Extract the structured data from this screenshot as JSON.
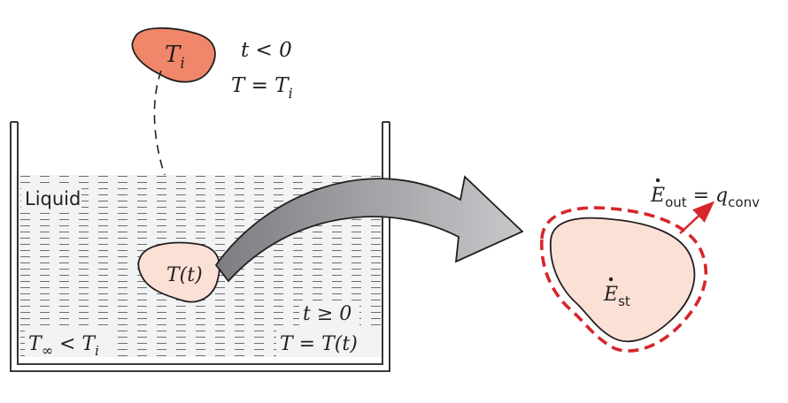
{
  "initial_block": {
    "label": "T",
    "label_sub": "i",
    "condition_1": "t < 0",
    "condition_2_lhs": "T = T",
    "condition_2_sub": "i"
  },
  "tank": {
    "liquid_label": "Liquid",
    "ambient_lhs": "T",
    "ambient_sub": "∞",
    "ambient_rhs": " < T",
    "ambient_rhs_sub": "i"
  },
  "immersed_block": {
    "label": "T(t)",
    "condition_1": "t ≥ 0",
    "condition_2": "T = T(t)"
  },
  "control_volume": {
    "stored_label": "E",
    "stored_sub": "st",
    "out_label": "E",
    "out_sub": "out",
    "equals": " = q",
    "q_sub": "conv"
  },
  "colors": {
    "initial_fill": "#F0876A",
    "immersed_fill": "#FBE0D6",
    "boundary_dash": "#D6262B",
    "arrow_fill": "#A7A9AC",
    "liquid_fill": "#F2F3F4",
    "line": "#231F20"
  }
}
